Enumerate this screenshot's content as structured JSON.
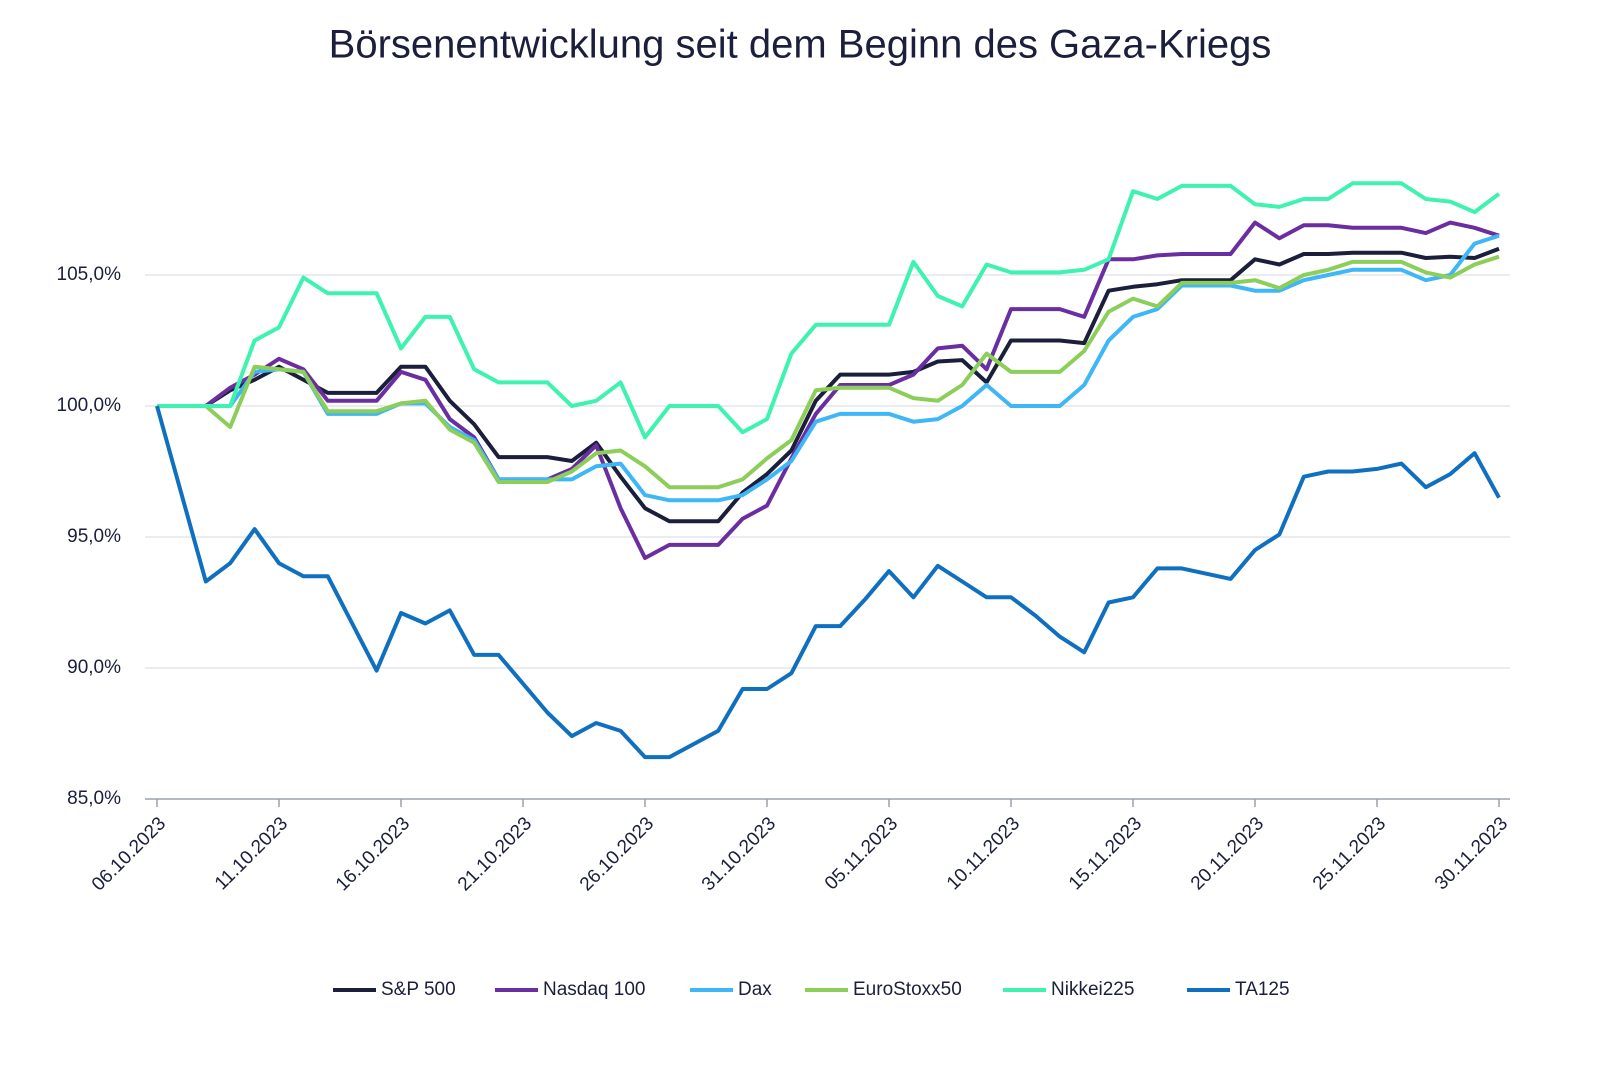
{
  "chart_data": {
    "type": "line",
    "title": "Börsenentwicklung seit dem Beginn des Gaza-Kriegs",
    "x": [
      "06.10.2023",
      "08.10.2023",
      "09.10.2023",
      "10.10.2023",
      "11.10.2023",
      "12.10.2023",
      "13.10.2023",
      "14.10.2023",
      "15.10.2023",
      "16.10.2023",
      "17.10.2023",
      "18.10.2023",
      "19.10.2023",
      "20.10.2023",
      "21.10.2023",
      "22.10.2023",
      "23.10.2023",
      "24.10.2023",
      "25.10.2023",
      "26.10.2023",
      "27.10.2023",
      "28.10.2023",
      "29.10.2023",
      "30.10.2023",
      "31.10.2023",
      "01.11.2023",
      "02.11.2023",
      "03.11.2023",
      "04.11.2023",
      "05.11.2023",
      "06.11.2023",
      "07.11.2023",
      "08.11.2023",
      "09.11.2023",
      "10.11.2023",
      "11.11.2023",
      "12.11.2023",
      "13.11.2023",
      "14.11.2023",
      "15.11.2023",
      "16.11.2023",
      "17.11.2023",
      "18.11.2023",
      "19.11.2023",
      "20.11.2023",
      "21.11.2023",
      "22.11.2023",
      "23.11.2023",
      "24.11.2023",
      "25.11.2023",
      "26.11.2023",
      "27.11.2023",
      "28.11.2023",
      "29.11.2023",
      "30.11.2023"
    ],
    "xlim": [
      "06.10.2023",
      "30.11.2023"
    ],
    "xticks": [
      "06.10.2023",
      "11.10.2023",
      "16.10.2023",
      "21.10.2023",
      "26.10.2023",
      "31.10.2023",
      "05.11.2023",
      "10.11.2023",
      "15.11.2023",
      "20.11.2023",
      "25.11.2023",
      "30.11.2023"
    ],
    "ylim": [
      85,
      110
    ],
    "yticks": [
      {
        "value": 85,
        "label": "85,0%"
      },
      {
        "value": 90,
        "label": "90,0%"
      },
      {
        "value": 95,
        "label": "95,0%"
      },
      {
        "value": 100,
        "label": "100,0%"
      },
      {
        "value": 105,
        "label": "105,0%"
      }
    ],
    "grid": true,
    "legend": "bottom",
    "series": [
      {
        "name": "S&P 500",
        "color": "#1b1f3b",
        "values": [
          100,
          100,
          100.6,
          101.0,
          101.5,
          101.0,
          100.5,
          100.5,
          100.5,
          101.5,
          101.5,
          100.2,
          99.3,
          98.05,
          98.05,
          98.05,
          97.9,
          98.6,
          97.3,
          96.1,
          95.6,
          95.6,
          95.6,
          96.7,
          97.4,
          98.3,
          100.2,
          101.2,
          101.2,
          101.2,
          101.3,
          101.7,
          101.75,
          100.9,
          102.5,
          102.5,
          102.5,
          102.4,
          104.4,
          104.55,
          104.65,
          104.8,
          104.8,
          104.8,
          105.6,
          105.4,
          105.8,
          105.8,
          105.85,
          105.85,
          105.85,
          105.65,
          105.7,
          105.65,
          106.0
        ]
      },
      {
        "name": "Nasdaq 100",
        "color": "#6a2ea0",
        "values": [
          100,
          100,
          100.7,
          101.2,
          101.8,
          101.4,
          100.2,
          100.2,
          100.2,
          101.3,
          101.0,
          99.5,
          98.8,
          97.2,
          97.2,
          97.2,
          97.6,
          98.5,
          96.1,
          94.2,
          94.7,
          94.7,
          94.7,
          95.7,
          96.2,
          98.0,
          99.7,
          100.8,
          100.8,
          100.8,
          101.2,
          102.2,
          102.3,
          101.4,
          103.7,
          103.7,
          103.7,
          103.4,
          105.6,
          105.6,
          105.75,
          105.8,
          105.8,
          105.8,
          107.0,
          106.4,
          106.9,
          106.9,
          106.8,
          106.8,
          106.8,
          106.6,
          107.0,
          106.8,
          106.5
        ]
      },
      {
        "name": "Dax",
        "color": "#3fb6f5",
        "values": [
          100,
          100,
          100,
          101.3,
          101.4,
          101.3,
          99.7,
          99.7,
          99.7,
          100.1,
          100.1,
          99.2,
          98.7,
          97.2,
          97.2,
          97.2,
          97.2,
          97.7,
          97.8,
          96.6,
          96.4,
          96.4,
          96.4,
          96.6,
          97.2,
          97.9,
          99.4,
          99.7,
          99.7,
          99.7,
          99.4,
          99.5,
          100.0,
          100.8,
          100.0,
          100.0,
          100.0,
          100.8,
          102.5,
          103.4,
          103.7,
          104.6,
          104.6,
          104.6,
          104.4,
          104.4,
          104.8,
          105.0,
          105.2,
          105.2,
          105.2,
          104.8,
          105.0,
          106.2,
          106.5
        ]
      },
      {
        "name": "EuroStoxx50",
        "color": "#8cce5a",
        "values": [
          100,
          100,
          99.2,
          101.5,
          101.4,
          101.3,
          99.8,
          99.8,
          99.8,
          100.1,
          100.2,
          99.1,
          98.6,
          97.1,
          97.1,
          97.1,
          97.5,
          98.2,
          98.3,
          97.7,
          96.9,
          96.9,
          96.9,
          97.2,
          98.0,
          98.7,
          100.6,
          100.7,
          100.7,
          100.7,
          100.3,
          100.2,
          100.8,
          102.0,
          101.3,
          101.3,
          101.3,
          102.1,
          103.6,
          104.1,
          103.8,
          104.7,
          104.7,
          104.7,
          104.8,
          104.5,
          105.0,
          105.2,
          105.5,
          105.5,
          105.5,
          105.1,
          104.9,
          105.4,
          105.7
        ]
      },
      {
        "name": "Nikkei225",
        "color": "#3ef2b0",
        "values": [
          100,
          100,
          100,
          102.5,
          103.0,
          104.9,
          104.3,
          104.3,
          104.3,
          102.2,
          103.4,
          103.4,
          101.4,
          100.9,
          100.9,
          100.9,
          100.0,
          100.2,
          100.9,
          98.8,
          100.0,
          100.0,
          100.0,
          99.0,
          99.5,
          102.0,
          103.1,
          103.1,
          103.1,
          103.1,
          105.5,
          104.2,
          103.8,
          105.4,
          105.1,
          105.1,
          105.1,
          105.2,
          105.6,
          108.2,
          107.9,
          108.4,
          108.4,
          108.4,
          107.7,
          107.6,
          107.9,
          107.9,
          108.5,
          108.5,
          108.5,
          107.9,
          107.8,
          107.4,
          108.1
        ]
      },
      {
        "name": "TA125",
        "color": "#1070c0",
        "values": [
          100,
          93.3,
          94.0,
          95.3,
          94.0,
          93.5,
          93.5,
          91.7,
          89.9,
          92.1,
          91.7,
          92.2,
          90.5,
          90.5,
          89.4,
          88.3,
          87.4,
          87.9,
          87.6,
          86.6,
          86.6,
          87.1,
          87.6,
          89.2,
          89.2,
          89.8,
          91.6,
          91.6,
          92.6,
          93.7,
          92.7,
          93.9,
          93.3,
          92.7,
          92.7,
          92.0,
          91.2,
          90.6,
          92.5,
          92.7,
          93.8,
          93.8,
          93.6,
          93.4,
          94.5,
          95.1,
          97.3,
          97.5,
          97.5,
          97.6,
          97.8,
          96.9,
          97.4,
          98.2,
          96.5
        ]
      }
    ]
  }
}
